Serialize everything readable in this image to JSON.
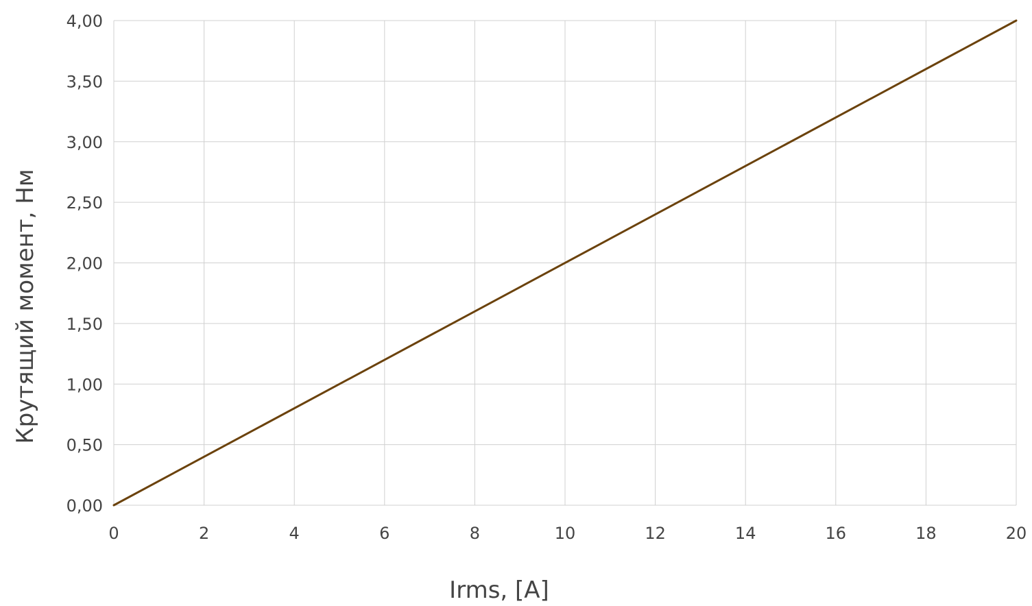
{
  "chart_data": {
    "type": "line",
    "title": "",
    "xlabel": "Irms, [A]",
    "ylabel": "Крутящий момент, Нм",
    "xlim": [
      0,
      20
    ],
    "ylim": [
      0,
      4
    ],
    "x_ticks": [
      "0",
      "2",
      "4",
      "6",
      "8",
      "10",
      "12",
      "14",
      "16",
      "18",
      "20"
    ],
    "y_ticks": [
      "0,00",
      "0,50",
      "1,00",
      "1,50",
      "2,00",
      "2,50",
      "3,00",
      "3,50",
      "4,00"
    ],
    "grid": true,
    "legend": "none",
    "series": [
      {
        "color": "#6b420c",
        "x": [
          0,
          20
        ],
        "y": [
          0,
          4
        ]
      }
    ],
    "colors": {
      "grid": "#d0d0d0",
      "text": "#444444"
    }
  }
}
